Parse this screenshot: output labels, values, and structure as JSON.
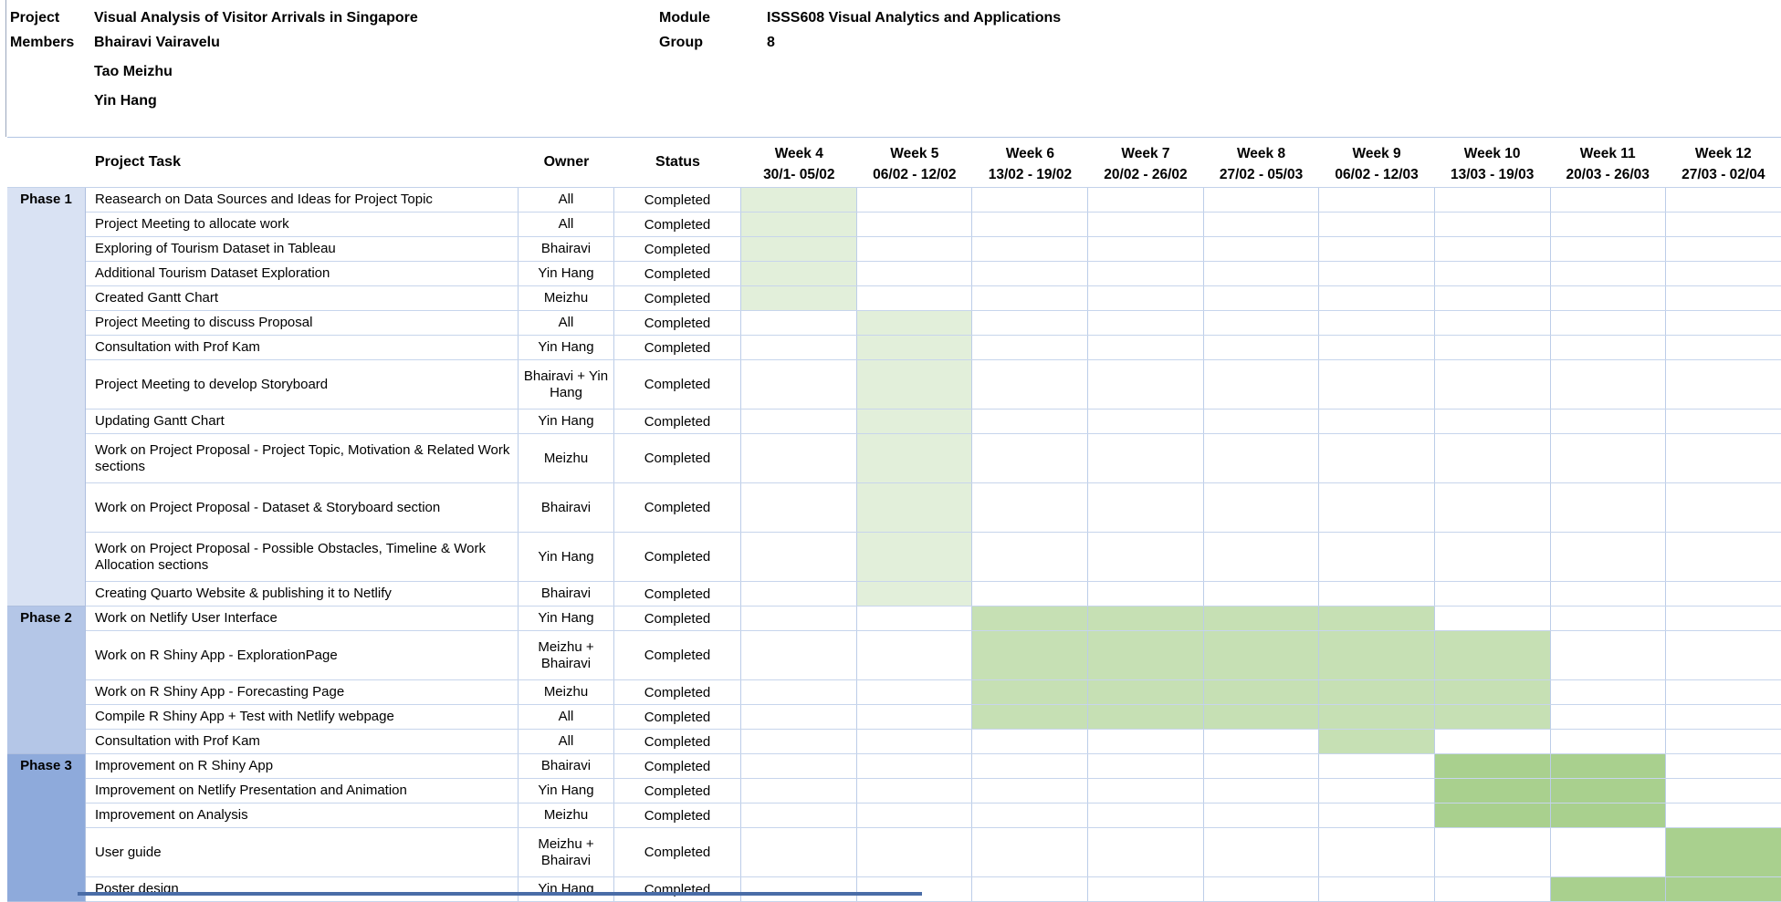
{
  "title_block": {
    "rows": [
      {
        "label": "Project",
        "value": "Visual Analysis of Visitor Arrivals in Singapore"
      },
      {
        "label": "Members",
        "value": "Bhairavi Vairavelu"
      },
      {
        "label": "",
        "value": "Tao Meizhu"
      },
      {
        "label": "",
        "value": "Yin Hang"
      }
    ],
    "module_label": "Module",
    "module_value": "ISSS608 Visual Analytics and Applications",
    "group_label": "Group",
    "group_value": "8"
  },
  "gantt": {
    "columns": {
      "task": "Project Task",
      "owner": "Owner",
      "status": "Status"
    },
    "weeks": [
      {
        "name": "Week 4",
        "dates": "30/1- 05/02"
      },
      {
        "name": "Week 5",
        "dates": "06/02 - 12/02"
      },
      {
        "name": "Week 6",
        "dates": "13/02 - 19/02"
      },
      {
        "name": "Week 7",
        "dates": "20/02 - 26/02"
      },
      {
        "name": "Week 8",
        "dates": "27/02 - 05/03"
      },
      {
        "name": "Week 9",
        "dates": "06/02 - 12/03"
      },
      {
        "name": "Week 10",
        "dates": "13/03 - 19/03"
      },
      {
        "name": "Week 11",
        "dates": "20/03 - 26/03"
      },
      {
        "name": "Week 12",
        "dates": "27/03 - 02/04"
      }
    ],
    "colors": {
      "phase1_fill": "#D9E2F3",
      "phase2_fill": "#B4C6E7",
      "phase3_fill": "#8EAADB",
      "bar_light": "#E2EFDA",
      "bar_medium": "#C6E0B4",
      "bar_dark": "#A9D08E",
      "grid": "#BCCDE8"
    },
    "phases": [
      {
        "name": "Phase 1",
        "fill": "#D9E2F3",
        "bar": "#E2EFDA",
        "tasks": [
          {
            "task": "Reasearch on Data Sources and Ideas for Project Topic",
            "owner": "All",
            "status": "Completed",
            "bar_start": 4,
            "bar_end": 4,
            "tall": false
          },
          {
            "task": "Project Meeting to allocate work",
            "owner": "All",
            "status": "Completed",
            "bar_start": 4,
            "bar_end": 4,
            "tall": false
          },
          {
            "task": "Exploring of Tourism Dataset in Tableau",
            "owner": "Bhairavi",
            "status": "Completed",
            "bar_start": 4,
            "bar_end": 4,
            "tall": false
          },
          {
            "task": "Additional Tourism Dataset Exploration",
            "owner": "Yin Hang",
            "status": "Completed",
            "bar_start": 4,
            "bar_end": 4,
            "tall": false
          },
          {
            "task": "Created Gantt Chart",
            "owner": "Meizhu",
            "status": "Completed",
            "bar_start": 4,
            "bar_end": 4,
            "tall": false
          },
          {
            "task": "Project Meeting to discuss Proposal",
            "owner": "All",
            "status": "Completed",
            "bar_start": 5,
            "bar_end": 5,
            "tall": false
          },
          {
            "task": "Consultation with Prof Kam",
            "owner": "Yin Hang",
            "status": "Completed",
            "bar_start": 5,
            "bar_end": 5,
            "tall": false
          },
          {
            "task": "Project Meeting to develop Storyboard",
            "owner": "Bhairavi + Yin Hang",
            "status": "Completed",
            "bar_start": 5,
            "bar_end": 5,
            "tall": true
          },
          {
            "task": "Updating Gantt Chart",
            "owner": "Yin Hang",
            "status": "Completed",
            "bar_start": 5,
            "bar_end": 5,
            "tall": false
          },
          {
            "task": "Work on Project Proposal - Project Topic, Motivation & Related Work sections",
            "owner": "Meizhu",
            "status": "Completed",
            "bar_start": 5,
            "bar_end": 5,
            "tall": true
          },
          {
            "task": "Work on Project Proposal - Dataset & Storyboard section",
            "owner": "Bhairavi",
            "status": "Completed",
            "bar_start": 5,
            "bar_end": 5,
            "tall": true
          },
          {
            "task": "Work on Project Proposal - Possible Obstacles, Timeline & Work Allocation sections",
            "owner": "Yin Hang",
            "status": "Completed",
            "bar_start": 5,
            "bar_end": 5,
            "tall": true
          },
          {
            "task": "Creating Quarto Website & publishing it to Netlify",
            "owner": "Bhairavi",
            "status": "Completed",
            "bar_start": 5,
            "bar_end": 5,
            "tall": false
          }
        ]
      },
      {
        "name": "Phase 2",
        "fill": "#B4C6E7",
        "bar": "#C6E0B4",
        "tasks": [
          {
            "task": "Work on Netlify User Interface",
            "owner": "Yin Hang",
            "status": "Completed",
            "bar_start": 6,
            "bar_end": 9,
            "tall": false
          },
          {
            "task": "Work on R Shiny App - ExplorationPage",
            "owner": "Meizhu + Bhairavi",
            "status": "Completed",
            "bar_start": 6,
            "bar_end": 10,
            "tall": true
          },
          {
            "task": "Work on R Shiny App - Forecasting Page",
            "owner": "Meizhu",
            "status": "Completed",
            "bar_start": 6,
            "bar_end": 10,
            "tall": false
          },
          {
            "task": "Compile R Shiny App + Test with Netlify webpage",
            "owner": "All",
            "status": "Completed",
            "bar_start": 6,
            "bar_end": 10,
            "tall": false
          },
          {
            "task": "Consultation with Prof Kam",
            "owner": "All",
            "status": "Completed",
            "bar_start": 9,
            "bar_end": 9,
            "tall": false
          }
        ]
      },
      {
        "name": "Phase 3",
        "fill": "#8EAADB",
        "bar": "#A9D08E",
        "tasks": [
          {
            "task": "Improvement on R Shiny App",
            "owner": "Bhairavi",
            "status": "Completed",
            "bar_start": 10,
            "bar_end": 11,
            "tall": false
          },
          {
            "task": "Improvement on Netlify Presentation and Animation",
            "owner": "Yin Hang",
            "status": "Completed",
            "bar_start": 10,
            "bar_end": 11,
            "tall": false
          },
          {
            "task": "Improvement on Analysis",
            "owner": "Meizhu",
            "status": "Completed",
            "bar_start": 10,
            "bar_end": 11,
            "tall": false
          },
          {
            "task": "User guide",
            "owner": "Meizhu + Bhairavi",
            "status": "Completed",
            "bar_start": 12,
            "bar_end": 12,
            "tall": true
          },
          {
            "task": "Poster design",
            "owner": "Yin Hang",
            "status": "Completed",
            "bar_start": 11,
            "bar_end": 12,
            "tall": false
          }
        ]
      }
    ]
  }
}
